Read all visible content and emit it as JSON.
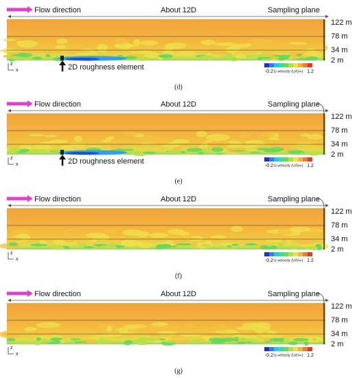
{
  "panels": [
    {
      "label": "(d)",
      "flow": "Flow direction",
      "distance": "About 12D",
      "sampling": "Sampling plane",
      "heights": [
        "122 m",
        "78 m",
        "34 m",
        "2 m"
      ],
      "roughness": "2D roughness element",
      "colorbar": {
        "min": "-0.2",
        "title": "U-velocity (U/U∞)",
        "max": "1.2"
      },
      "axes": {
        "z": "z",
        "x": "x"
      }
    },
    {
      "label": "(e)",
      "flow": "Flow direction",
      "distance": "About 12D",
      "sampling": "Sampling plane",
      "heights": [
        "122 m",
        "78 m",
        "34 m",
        "2 m"
      ],
      "roughness": "2D roughness element",
      "colorbar": {
        "min": "-0.2",
        "title": "U-velocity (U/U∞)",
        "max": "1.2"
      },
      "axes": {
        "z": "z",
        "x": "x"
      }
    },
    {
      "label": "(f)",
      "flow": "Flow direction",
      "distance": "About 12D",
      "sampling": "Sampling plane",
      "heights": [
        "122 m",
        "78 m",
        "34 m",
        "2 m"
      ],
      "colorbar": {
        "min": "-0.2",
        "title": "U-velocity (U/U∞)",
        "max": "1.2"
      },
      "axes": {
        "z": "z",
        "x": "x"
      }
    },
    {
      "label": "(g)",
      "flow": "Flow direction",
      "distance": "About 12D",
      "sampling": "Sampling plane",
      "heights": [
        "122 m",
        "78 m",
        "34 m",
        "2 m"
      ],
      "colorbar": {
        "min": "-0.2",
        "title": "U-velocity (U/U∞)",
        "max": "1.2"
      },
      "axes": {
        "z": "z",
        "x": "x"
      }
    }
  ]
}
